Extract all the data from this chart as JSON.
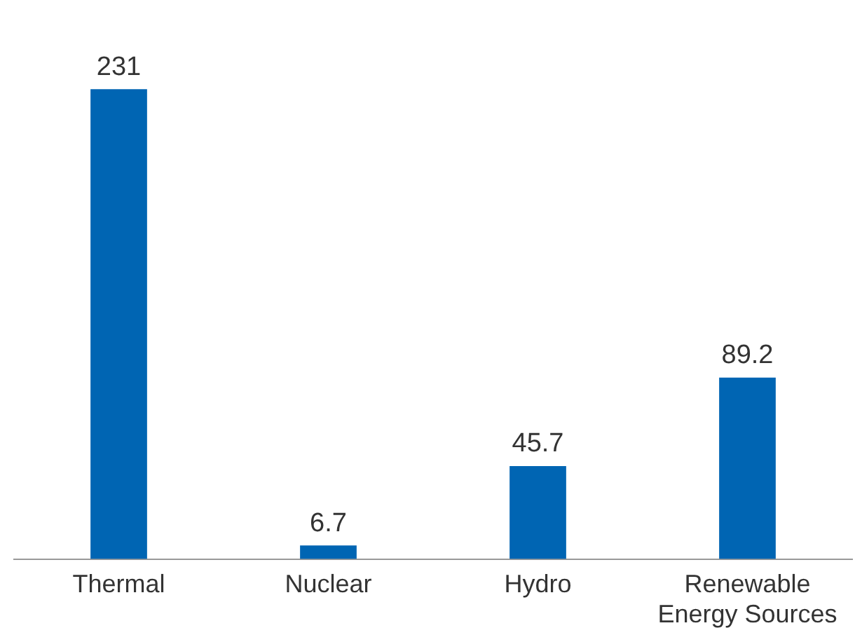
{
  "chart_data": {
    "type": "bar",
    "categories": [
      "Thermal",
      "Nuclear",
      "Hydro",
      "Renewable Energy Sources"
    ],
    "values": [
      231,
      6.7,
      45.7,
      89.2
    ],
    "color": "#0065b3",
    "data_labels": true,
    "grid": false,
    "legend": false,
    "tick_labels": "x"
  }
}
